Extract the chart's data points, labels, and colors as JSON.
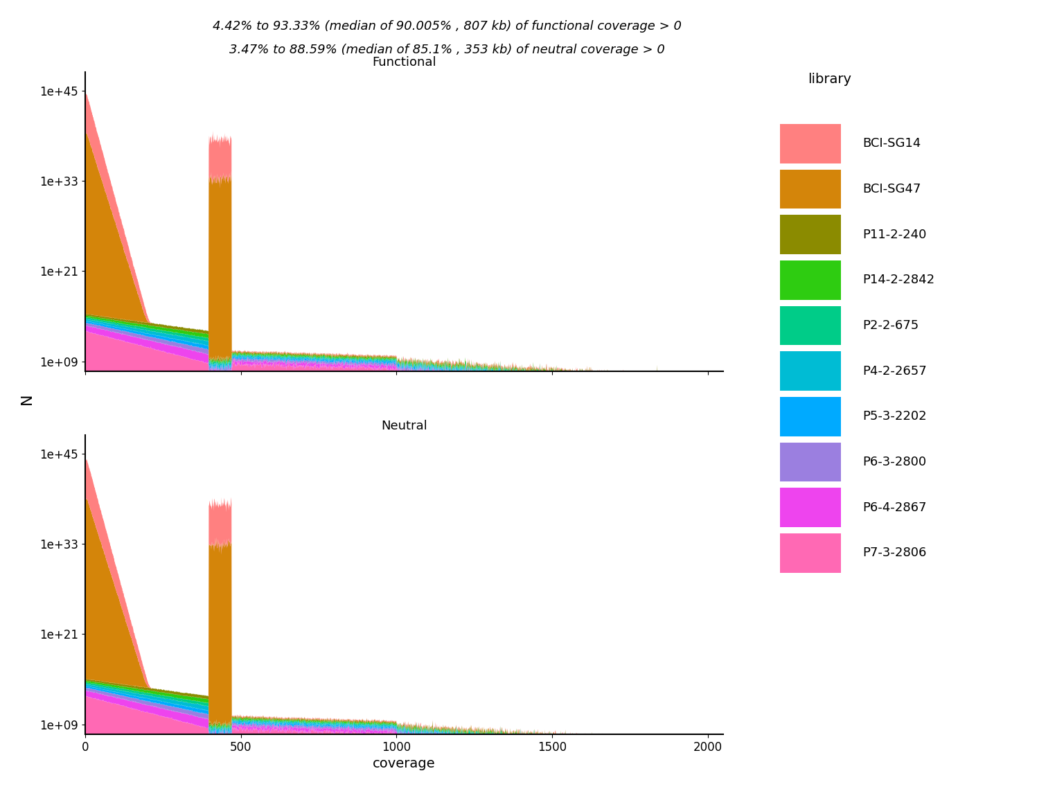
{
  "title_line1": "4.42% to 93.33% (median of 90.005% , 807 kb) of functional coverage > 0",
  "title_line2": "3.47% to 88.59% (median of 85.1% , 353 kb) of neutral coverage > 0",
  "subtitle_functional": "Functional",
  "subtitle_neutral": "Neutral",
  "xlabel": "coverage",
  "ylabel": "N",
  "xlim": [
    0,
    2050
  ],
  "xticks": [
    0,
    500,
    1000,
    1500,
    2000
  ],
  "libraries": [
    "BCI-SG14",
    "BCI-SG47",
    "P11-2-240",
    "P14-2-2842",
    "P2-2-675",
    "P4-2-2657",
    "P5-3-2202",
    "P6-3-2800",
    "P6-4-2867",
    "P7-3-2806"
  ],
  "colors_bottom_to_top": [
    "#FF69B4",
    "#EE44EE",
    "#9B7FE0",
    "#00AAFF",
    "#00BCD4",
    "#00CC88",
    "#2ECC11",
    "#8B8B00",
    "#D4850A",
    "#FF8080"
  ],
  "colors_legend": [
    "#FF8080",
    "#D4850A",
    "#8B8B00",
    "#2ECC11",
    "#00CC88",
    "#00BCD4",
    "#00AAFF",
    "#9B7FE0",
    "#EE44EE",
    "#FF69B4"
  ],
  "background_color": "#FFFFFF",
  "yticks": [
    1000000000.0,
    1e+21,
    1e+33,
    1e+45
  ],
  "ylim_bottom": 50000000.0,
  "ylim_top": 3e+47
}
